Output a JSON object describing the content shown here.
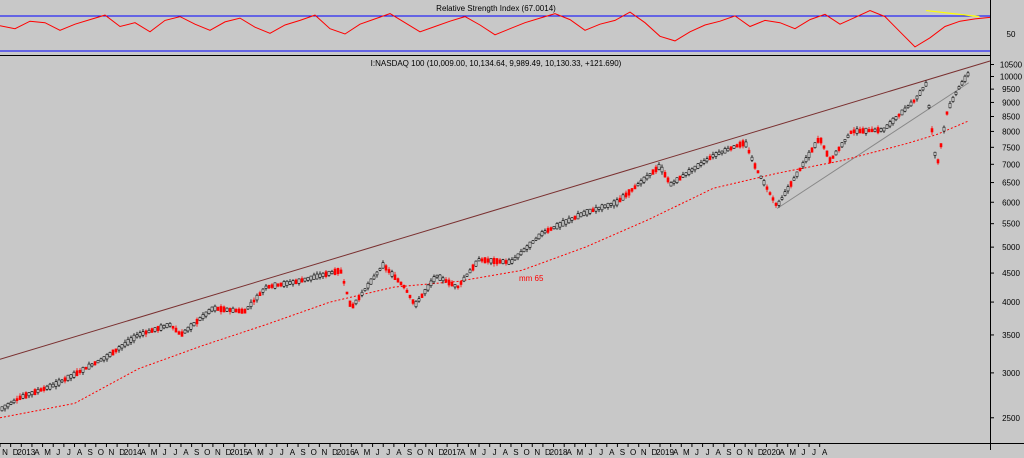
{
  "chart_data": [
    {
      "type": "line",
      "title": "Relative Strength Index (67.0014)",
      "y_tick_labels": [
        "50"
      ],
      "reference_levels": [
        70,
        30
      ],
      "ylim": [
        20,
        82
      ],
      "series": [
        {
          "values": [
            56,
            52,
            62,
            60,
            50,
            58,
            64,
            70,
            55,
            60,
            48,
            63,
            68,
            58,
            50,
            61,
            66,
            54,
            46,
            57,
            63,
            70,
            52,
            45,
            58,
            65,
            72,
            60,
            48,
            55,
            62,
            68,
            57,
            44,
            52,
            60,
            66,
            72,
            64,
            50,
            58,
            63,
            74,
            60,
            42,
            36,
            48,
            57,
            62,
            69,
            55,
            63,
            60,
            52,
            64,
            71,
            58,
            67,
            76,
            68,
            48,
            28,
            40,
            55,
            62,
            65,
            67
          ]
        }
      ],
      "trendline": {
        "color": "#ffff00",
        "from": {
          "x": "2020-02",
          "y": 76
        },
        "to": {
          "x": "2020-07",
          "y": 68
        }
      },
      "colors": {
        "series": "#ff0000",
        "reference": "#0000ff"
      }
    },
    {
      "type": "candlestick",
      "title": "I:NASDAQ 100 (10,009.00, 10,134.64, 9,989.49, 10,130.33, +121.690)",
      "y_scale": "log",
      "ylim": [
        2350,
        10650
      ],
      "y_ticks": [
        2500,
        3000,
        3500,
        4000,
        4500,
        5000,
        5500,
        6000,
        6500,
        7000,
        7500,
        8000,
        8500,
        9000,
        9500,
        10000,
        10500
      ],
      "x_tick_labels": [
        "N",
        "D",
        "2013",
        "A",
        "M",
        "J",
        "J",
        "A",
        "S",
        "O",
        "N",
        "D",
        "2014",
        "A",
        "M",
        "J",
        "J",
        "A",
        "S",
        "O",
        "N",
        "D",
        "2015",
        "A",
        "M",
        "J",
        "J",
        "A",
        "S",
        "O",
        "N",
        "D",
        "2016",
        "A",
        "M",
        "J",
        "J",
        "A",
        "S",
        "O",
        "N",
        "D",
        "2017",
        "A",
        "M",
        "J",
        "J",
        "A",
        "S",
        "O",
        "N",
        "D",
        "2018",
        "A",
        "M",
        "J",
        "J",
        "A",
        "S",
        "O",
        "N",
        "D",
        "2019",
        "A",
        "M",
        "J",
        "J",
        "A",
        "S",
        "O",
        "N",
        "D",
        "2020",
        "A",
        "M",
        "J",
        "J",
        "A"
      ],
      "x_range": [
        "2012-11",
        "2020-08"
      ],
      "price_path": [
        {
          "x": "2012-11",
          "y": 2580
        },
        {
          "x": "2013-01",
          "y": 2720
        },
        {
          "x": "2013-04",
          "y": 2850
        },
        {
          "x": "2013-06",
          "y": 2980
        },
        {
          "x": "2013-09",
          "y": 3200
        },
        {
          "x": "2013-12",
          "y": 3500
        },
        {
          "x": "2014-03",
          "y": 3650
        },
        {
          "x": "2014-04",
          "y": 3500
        },
        {
          "x": "2014-07",
          "y": 3900
        },
        {
          "x": "2014-10",
          "y": 3850
        },
        {
          "x": "2014-12",
          "y": 4250
        },
        {
          "x": "2015-03",
          "y": 4350
        },
        {
          "x": "2015-07",
          "y": 4550
        },
        {
          "x": "2015-08",
          "y": 3900
        },
        {
          "x": "2015-11",
          "y": 4650
        },
        {
          "x": "2016-01",
          "y": 4250
        },
        {
          "x": "2016-02",
          "y": 3950
        },
        {
          "x": "2016-04",
          "y": 4450
        },
        {
          "x": "2016-06",
          "y": 4250
        },
        {
          "x": "2016-08",
          "y": 4750
        },
        {
          "x": "2016-11",
          "y": 4700
        },
        {
          "x": "2017-02",
          "y": 5300
        },
        {
          "x": "2017-06",
          "y": 5750
        },
        {
          "x": "2017-09",
          "y": 6000
        },
        {
          "x": "2018-01",
          "y": 6950
        },
        {
          "x": "2018-02",
          "y": 6450
        },
        {
          "x": "2018-06",
          "y": 7250
        },
        {
          "x": "2018-09",
          "y": 7650
        },
        {
          "x": "2018-10",
          "y": 6900
        },
        {
          "x": "2018-12",
          "y": 5900
        },
        {
          "x": "2019-04",
          "y": 7800
        },
        {
          "x": "2019-05",
          "y": 7100
        },
        {
          "x": "2019-07",
          "y": 8000
        },
        {
          "x": "2019-10",
          "y": 8050
        },
        {
          "x": "2020-01",
          "y": 9100
        },
        {
          "x": "2020-02",
          "y": 9700
        },
        {
          "x": "2020-03",
          "y": 6900
        },
        {
          "x": "2020-04",
          "y": 8700
        },
        {
          "x": "2020-05",
          "y": 9500
        },
        {
          "x": "2020-06",
          "y": 10130
        }
      ],
      "overlays": [
        {
          "name": "mm 65",
          "style": "dotted",
          "color": "#ff0000",
          "values": [
            {
              "x": "2012-11",
              "y": 2500
            },
            {
              "x": "2013-06",
              "y": 2650
            },
            {
              "x": "2013-12",
              "y": 3050
            },
            {
              "x": "2014-06",
              "y": 3350
            },
            {
              "x": "2014-12",
              "y": 3650
            },
            {
              "x": "2015-06",
              "y": 4000
            },
            {
              "x": "2015-12",
              "y": 4250
            },
            {
              "x": "2016-06",
              "y": 4350
            },
            {
              "x": "2016-12",
              "y": 4550
            },
            {
              "x": "2017-06",
              "y": 5000
            },
            {
              "x": "2017-12",
              "y": 5600
            },
            {
              "x": "2018-06",
              "y": 6350
            },
            {
              "x": "2018-12",
              "y": 6750
            },
            {
              "x": "2019-06",
              "y": 7100
            },
            {
              "x": "2019-12",
              "y": 7600
            },
            {
              "x": "2020-03",
              "y": 7900
            },
            {
              "x": "2020-06",
              "y": 8350
            }
          ]
        }
      ],
      "trendlines": [
        {
          "color": "#7a3030",
          "from": {
            "x": "2012-11",
            "y": 3170
          },
          "to": {
            "x": "2020-08",
            "y": 10650
          }
        },
        {
          "color": "#888888",
          "from": {
            "x": "2018-12",
            "y": 5850
          },
          "to": {
            "x": "2020-06",
            "y": 9750
          }
        }
      ],
      "colors": {
        "up": "#000000",
        "down": "#ff0000"
      }
    }
  ]
}
